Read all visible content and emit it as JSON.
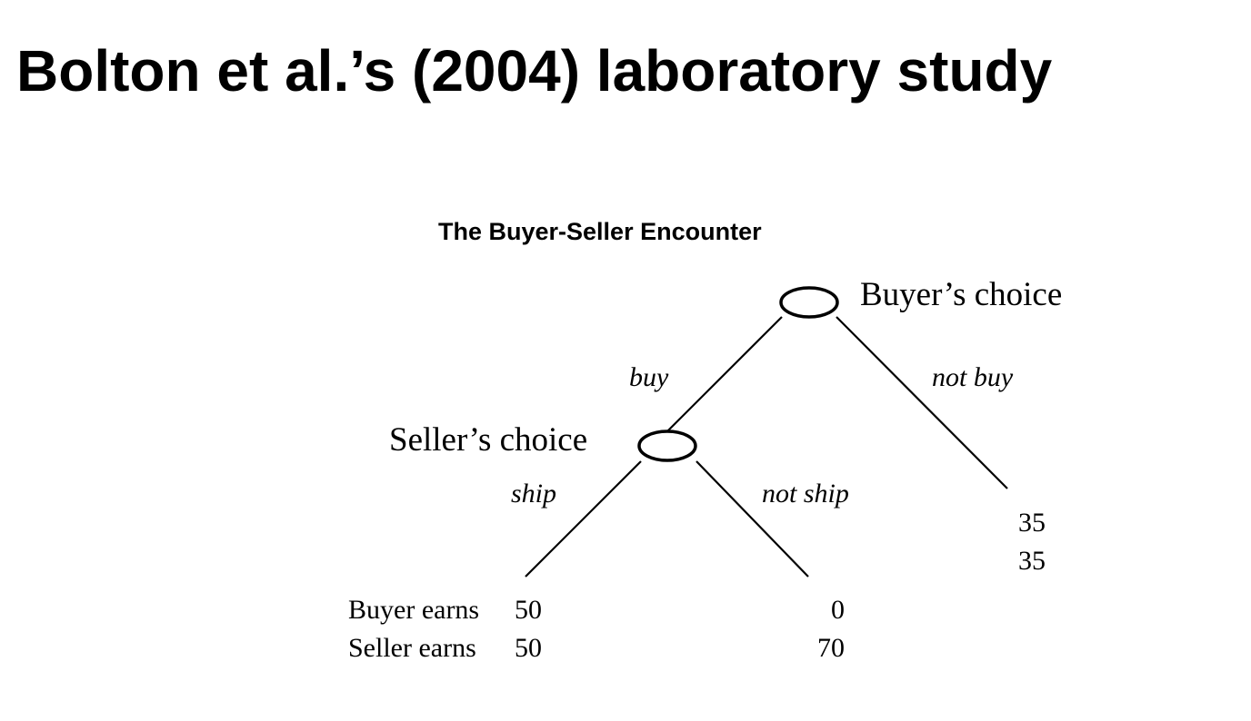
{
  "slide": {
    "title": "Bolton et al.’s (2004) laboratory study"
  },
  "figure": {
    "title": "The Buyer-Seller Encounter",
    "nodes": {
      "buyer": "Buyer’s choice",
      "seller": "Seller’s choice"
    },
    "branches": {
      "buy": "buy",
      "not_buy": "not buy",
      "ship": "ship",
      "not_ship": "not ship"
    },
    "payoffs": {
      "row_labels": {
        "buyer": "Buyer earns",
        "seller": "Seller earns"
      },
      "ship": {
        "buyer": "50",
        "seller": "50"
      },
      "not_ship": {
        "buyer": "0",
        "seller": "70"
      },
      "not_buy": {
        "buyer": "35",
        "seller": "35"
      }
    }
  }
}
